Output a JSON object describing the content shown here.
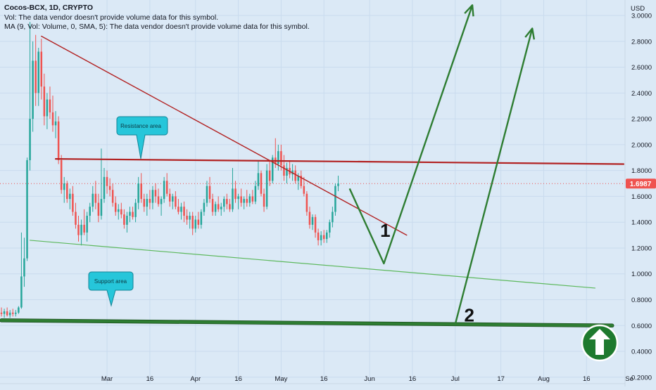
{
  "legend": {
    "title": "Cocos-BCX, 1D, CRYPTO",
    "vol": "Vol: The data vendor doesn't provide volume data for this symbol.",
    "ma": "MA (9, Vol: Volume, 0, SMA, 5): The data vendor doesn't provide volume data for this symbol."
  },
  "colors": {
    "background": "#dbe9f6",
    "up": "#26a69a",
    "down": "#ef5350",
    "resistance": "#b22222",
    "support": "#2e7d32",
    "channel": "#5cb85c",
    "arrow": "#2e7d32",
    "callout": "#26c6da",
    "price_badge": "#ef5350"
  },
  "chart_data": {
    "type": "candlestick",
    "y_axis": {
      "unit": "USD",
      "ticks": [
        "3.0000",
        "2.8000",
        "2.6000",
        "2.4000",
        "2.2000",
        "2.0000",
        "1.8000",
        "1.6000",
        "1.4000",
        "1.2000",
        "1.0000",
        "0.8000",
        "0.6000",
        "0.4000",
        "0.2000"
      ],
      "tick_values": [
        3.0,
        2.8,
        2.6,
        2.4,
        2.2,
        2.0,
        1.8,
        1.6,
        1.4,
        1.2,
        1.0,
        0.8,
        0.6,
        0.4,
        0.2
      ],
      "range": [
        0.15,
        3.12
      ]
    },
    "x_axis": {
      "labels": [
        "Mar",
        "16",
        "Apr",
        "16",
        "May",
        "16",
        "Jun",
        "16",
        "Jul",
        "17",
        "Aug",
        "16",
        "Se"
      ],
      "label_days": [
        29,
        44,
        60,
        75,
        90,
        105,
        121,
        136,
        151,
        167,
        182,
        197,
        212
      ],
      "range_days": [
        -8.5,
        210.5
      ]
    },
    "last_price": {
      "label": "1.6987",
      "value": 1.6987
    },
    "candles": [
      {
        "d": -8,
        "o": 0.7,
        "h": 0.74,
        "l": 0.67,
        "c": 0.69
      },
      {
        "d": -7,
        "o": 0.69,
        "h": 0.73,
        "l": 0.66,
        "c": 0.71
      },
      {
        "d": -6,
        "o": 0.71,
        "h": 0.74,
        "l": 0.67,
        "c": 0.68
      },
      {
        "d": -5,
        "o": 0.68,
        "h": 0.72,
        "l": 0.66,
        "c": 0.7
      },
      {
        "d": -4,
        "o": 0.7,
        "h": 0.73,
        "l": 0.67,
        "c": 0.69
      },
      {
        "d": -3,
        "o": 0.69,
        "h": 0.72,
        "l": 0.67,
        "c": 0.7
      },
      {
        "d": -2,
        "o": 0.7,
        "h": 0.75,
        "l": 0.69,
        "c": 0.74
      },
      {
        "d": -1,
        "o": 0.74,
        "h": 1.32,
        "l": 0.73,
        "c": 0.98
      },
      {
        "d": 0,
        "o": 0.98,
        "h": 1.28,
        "l": 0.9,
        "c": 1.12
      },
      {
        "d": 1,
        "o": 1.12,
        "h": 1.9,
        "l": 1.1,
        "c": 1.88
      },
      {
        "d": 2,
        "o": 1.88,
        "h": 2.95,
        "l": 1.8,
        "c": 2.2
      },
      {
        "d": 3,
        "o": 2.2,
        "h": 2.8,
        "l": 2.1,
        "c": 2.65
      },
      {
        "d": 4,
        "o": 2.65,
        "h": 2.85,
        "l": 2.3,
        "c": 2.4
      },
      {
        "d": 5,
        "o": 2.4,
        "h": 2.75,
        "l": 2.3,
        "c": 2.72
      },
      {
        "d": 6,
        "o": 2.72,
        "h": 2.82,
        "l": 2.35,
        "c": 2.45
      },
      {
        "d": 7,
        "o": 2.45,
        "h": 2.55,
        "l": 2.15,
        "c": 2.22
      },
      {
        "d": 8,
        "o": 2.22,
        "h": 2.4,
        "l": 2.12,
        "c": 2.35
      },
      {
        "d": 9,
        "o": 2.35,
        "h": 2.45,
        "l": 2.2,
        "c": 2.25
      },
      {
        "d": 10,
        "o": 2.25,
        "h": 2.38,
        "l": 2.1,
        "c": 2.15
      },
      {
        "d": 11,
        "o": 2.15,
        "h": 2.26,
        "l": 2.05,
        "c": 2.18
      },
      {
        "d": 12,
        "o": 2.18,
        "h": 2.22,
        "l": 1.85,
        "c": 1.88
      },
      {
        "d": 13,
        "o": 1.88,
        "h": 1.92,
        "l": 1.62,
        "c": 1.65
      },
      {
        "d": 14,
        "o": 1.65,
        "h": 1.75,
        "l": 1.55,
        "c": 1.7
      },
      {
        "d": 15,
        "o": 1.7,
        "h": 1.72,
        "l": 1.55,
        "c": 1.58
      },
      {
        "d": 16,
        "o": 1.58,
        "h": 1.66,
        "l": 1.5,
        "c": 1.62
      },
      {
        "d": 17,
        "o": 1.62,
        "h": 1.68,
        "l": 1.45,
        "c": 1.48
      },
      {
        "d": 18,
        "o": 1.48,
        "h": 1.55,
        "l": 1.35,
        "c": 1.38
      },
      {
        "d": 19,
        "o": 1.38,
        "h": 1.45,
        "l": 1.25,
        "c": 1.3
      },
      {
        "d": 20,
        "o": 1.3,
        "h": 1.42,
        "l": 1.22,
        "c": 1.38
      },
      {
        "d": 21,
        "o": 1.38,
        "h": 1.5,
        "l": 1.3,
        "c": 1.32
      },
      {
        "d": 22,
        "o": 1.32,
        "h": 1.48,
        "l": 1.25,
        "c": 1.45
      },
      {
        "d": 23,
        "o": 1.45,
        "h": 1.55,
        "l": 1.4,
        "c": 1.52
      },
      {
        "d": 24,
        "o": 1.52,
        "h": 1.68,
        "l": 1.48,
        "c": 1.62
      },
      {
        "d": 25,
        "o": 1.62,
        "h": 1.72,
        "l": 1.5,
        "c": 1.55
      },
      {
        "d": 26,
        "o": 1.55,
        "h": 1.62,
        "l": 1.4,
        "c": 1.45
      },
      {
        "d": 27,
        "o": 1.45,
        "h": 1.97,
        "l": 1.42,
        "c": 1.58
      },
      {
        "d": 28,
        "o": 1.58,
        "h": 1.82,
        "l": 1.55,
        "c": 1.75
      },
      {
        "d": 29,
        "o": 1.75,
        "h": 1.8,
        "l": 1.62,
        "c": 1.68
      },
      {
        "d": 30,
        "o": 1.68,
        "h": 1.74,
        "l": 1.6,
        "c": 1.65
      },
      {
        "d": 31,
        "o": 1.65,
        "h": 1.7,
        "l": 1.52,
        "c": 1.55
      },
      {
        "d": 32,
        "o": 1.55,
        "h": 1.6,
        "l": 1.45,
        "c": 1.48
      },
      {
        "d": 33,
        "o": 1.48,
        "h": 1.54,
        "l": 1.42,
        "c": 1.5
      },
      {
        "d": 34,
        "o": 1.5,
        "h": 1.55,
        "l": 1.43,
        "c": 1.46
      },
      {
        "d": 35,
        "o": 1.46,
        "h": 1.5,
        "l": 1.35,
        "c": 1.38
      },
      {
        "d": 36,
        "o": 1.38,
        "h": 1.48,
        "l": 1.32,
        "c": 1.45
      },
      {
        "d": 37,
        "o": 1.45,
        "h": 1.52,
        "l": 1.4,
        "c": 1.48
      },
      {
        "d": 38,
        "o": 1.48,
        "h": 1.52,
        "l": 1.42,
        "c": 1.44
      },
      {
        "d": 39,
        "o": 1.44,
        "h": 1.58,
        "l": 1.4,
        "c": 1.55
      },
      {
        "d": 40,
        "o": 1.55,
        "h": 1.75,
        "l": 1.5,
        "c": 1.7
      },
      {
        "d": 41,
        "o": 1.7,
        "h": 1.78,
        "l": 1.55,
        "c": 1.58
      },
      {
        "d": 42,
        "o": 1.58,
        "h": 1.62,
        "l": 1.48,
        "c": 1.52
      },
      {
        "d": 43,
        "o": 1.52,
        "h": 1.62,
        "l": 1.45,
        "c": 1.58
      },
      {
        "d": 44,
        "o": 1.58,
        "h": 1.65,
        "l": 1.5,
        "c": 1.55
      },
      {
        "d": 45,
        "o": 1.55,
        "h": 1.68,
        "l": 1.5,
        "c": 1.65
      },
      {
        "d": 46,
        "o": 1.65,
        "h": 1.7,
        "l": 1.55,
        "c": 1.6
      },
      {
        "d": 47,
        "o": 1.6,
        "h": 1.66,
        "l": 1.52,
        "c": 1.54
      },
      {
        "d": 48,
        "o": 1.54,
        "h": 1.6,
        "l": 1.45,
        "c": 1.58
      },
      {
        "d": 49,
        "o": 1.58,
        "h": 1.75,
        "l": 1.55,
        "c": 1.72
      },
      {
        "d": 50,
        "o": 1.72,
        "h": 1.78,
        "l": 1.6,
        "c": 1.62
      },
      {
        "d": 51,
        "o": 1.62,
        "h": 1.66,
        "l": 1.52,
        "c": 1.56
      },
      {
        "d": 52,
        "o": 1.56,
        "h": 1.62,
        "l": 1.5,
        "c": 1.6
      },
      {
        "d": 53,
        "o": 1.6,
        "h": 1.64,
        "l": 1.5,
        "c": 1.52
      },
      {
        "d": 54,
        "o": 1.52,
        "h": 1.58,
        "l": 1.46,
        "c": 1.48
      },
      {
        "d": 55,
        "o": 1.48,
        "h": 1.55,
        "l": 1.42,
        "c": 1.52
      },
      {
        "d": 56,
        "o": 1.52,
        "h": 1.56,
        "l": 1.4,
        "c": 1.45
      },
      {
        "d": 57,
        "o": 1.45,
        "h": 1.5,
        "l": 1.38,
        "c": 1.42
      },
      {
        "d": 58,
        "o": 1.42,
        "h": 1.48,
        "l": 1.35,
        "c": 1.45
      },
      {
        "d": 59,
        "o": 1.45,
        "h": 1.48,
        "l": 1.3,
        "c": 1.35
      },
      {
        "d": 60,
        "o": 1.35,
        "h": 1.45,
        "l": 1.32,
        "c": 1.42
      },
      {
        "d": 61,
        "o": 1.42,
        "h": 1.48,
        "l": 1.35,
        "c": 1.38
      },
      {
        "d": 62,
        "o": 1.38,
        "h": 1.5,
        "l": 1.35,
        "c": 1.48
      },
      {
        "d": 63,
        "o": 1.48,
        "h": 1.58,
        "l": 1.45,
        "c": 1.55
      },
      {
        "d": 64,
        "o": 1.55,
        "h": 1.72,
        "l": 1.52,
        "c": 1.68
      },
      {
        "d": 65,
        "o": 1.68,
        "h": 1.75,
        "l": 1.55,
        "c": 1.58
      },
      {
        "d": 66,
        "o": 1.58,
        "h": 1.62,
        "l": 1.45,
        "c": 1.48
      },
      {
        "d": 67,
        "o": 1.48,
        "h": 1.56,
        "l": 1.45,
        "c": 1.54
      },
      {
        "d": 68,
        "o": 1.54,
        "h": 1.6,
        "l": 1.48,
        "c": 1.5
      },
      {
        "d": 69,
        "o": 1.5,
        "h": 1.55,
        "l": 1.45,
        "c": 1.52
      },
      {
        "d": 70,
        "o": 1.52,
        "h": 1.6,
        "l": 1.48,
        "c": 1.58
      },
      {
        "d": 71,
        "o": 1.58,
        "h": 1.62,
        "l": 1.5,
        "c": 1.54
      },
      {
        "d": 72,
        "o": 1.54,
        "h": 1.58,
        "l": 1.48,
        "c": 1.5
      },
      {
        "d": 73,
        "o": 1.5,
        "h": 1.82,
        "l": 1.48,
        "c": 1.66
      },
      {
        "d": 74,
        "o": 1.66,
        "h": 1.72,
        "l": 1.55,
        "c": 1.58
      },
      {
        "d": 75,
        "o": 1.58,
        "h": 1.62,
        "l": 1.5,
        "c": 1.6
      },
      {
        "d": 76,
        "o": 1.6,
        "h": 1.66,
        "l": 1.52,
        "c": 1.55
      },
      {
        "d": 77,
        "o": 1.55,
        "h": 1.6,
        "l": 1.5,
        "c": 1.58
      },
      {
        "d": 78,
        "o": 1.58,
        "h": 1.65,
        "l": 1.52,
        "c": 1.55
      },
      {
        "d": 79,
        "o": 1.55,
        "h": 1.62,
        "l": 1.52,
        "c": 1.6
      },
      {
        "d": 80,
        "o": 1.6,
        "h": 1.65,
        "l": 1.54,
        "c": 1.56
      },
      {
        "d": 81,
        "o": 1.56,
        "h": 1.72,
        "l": 1.54,
        "c": 1.68
      },
      {
        "d": 82,
        "o": 1.68,
        "h": 1.88,
        "l": 1.65,
        "c": 1.78
      },
      {
        "d": 83,
        "o": 1.78,
        "h": 1.8,
        "l": 1.6,
        "c": 1.62
      },
      {
        "d": 84,
        "o": 1.62,
        "h": 1.66,
        "l": 1.48,
        "c": 1.52
      },
      {
        "d": 85,
        "o": 1.52,
        "h": 1.85,
        "l": 1.5,
        "c": 1.8
      },
      {
        "d": 86,
        "o": 1.8,
        "h": 1.88,
        "l": 1.68,
        "c": 1.72
      },
      {
        "d": 87,
        "o": 1.72,
        "h": 1.92,
        "l": 1.7,
        "c": 1.9
      },
      {
        "d": 88,
        "o": 1.9,
        "h": 2.05,
        "l": 1.82,
        "c": 1.85
      },
      {
        "d": 89,
        "o": 1.85,
        "h": 2.0,
        "l": 1.8,
        "c": 1.95
      },
      {
        "d": 90,
        "o": 1.95,
        "h": 2.0,
        "l": 1.8,
        "c": 1.84
      },
      {
        "d": 91,
        "o": 1.84,
        "h": 1.92,
        "l": 1.72,
        "c": 1.76
      },
      {
        "d": 92,
        "o": 1.76,
        "h": 1.86,
        "l": 1.7,
        "c": 1.82
      },
      {
        "d": 93,
        "o": 1.82,
        "h": 1.88,
        "l": 1.74,
        "c": 1.77
      },
      {
        "d": 94,
        "o": 1.77,
        "h": 1.85,
        "l": 1.72,
        "c": 1.8
      },
      {
        "d": 95,
        "o": 1.8,
        "h": 1.84,
        "l": 1.7,
        "c": 1.72
      },
      {
        "d": 96,
        "o": 1.72,
        "h": 1.78,
        "l": 1.65,
        "c": 1.76
      },
      {
        "d": 97,
        "o": 1.76,
        "h": 1.8,
        "l": 1.66,
        "c": 1.68
      },
      {
        "d": 98,
        "o": 1.68,
        "h": 1.75,
        "l": 1.6,
        "c": 1.62
      },
      {
        "d": 99,
        "o": 1.62,
        "h": 1.64,
        "l": 1.45,
        "c": 1.48
      },
      {
        "d": 100,
        "o": 1.48,
        "h": 1.52,
        "l": 1.35,
        "c": 1.38
      },
      {
        "d": 101,
        "o": 1.38,
        "h": 1.46,
        "l": 1.34,
        "c": 1.44
      },
      {
        "d": 102,
        "o": 1.44,
        "h": 1.46,
        "l": 1.28,
        "c": 1.32
      },
      {
        "d": 103,
        "o": 1.32,
        "h": 1.35,
        "l": 1.22,
        "c": 1.26
      },
      {
        "d": 104,
        "o": 1.26,
        "h": 1.33,
        "l": 1.22,
        "c": 1.3
      },
      {
        "d": 105,
        "o": 1.3,
        "h": 1.34,
        "l": 1.24,
        "c": 1.27
      },
      {
        "d": 106,
        "o": 1.27,
        "h": 1.34,
        "l": 1.24,
        "c": 1.32
      },
      {
        "d": 107,
        "o": 1.32,
        "h": 1.42,
        "l": 1.28,
        "c": 1.4
      },
      {
        "d": 108,
        "o": 1.4,
        "h": 1.52,
        "l": 1.36,
        "c": 1.48
      },
      {
        "d": 109,
        "o": 1.48,
        "h": 1.7,
        "l": 1.45,
        "c": 1.68
      },
      {
        "d": 110,
        "o": 1.68,
        "h": 1.76,
        "l": 1.64,
        "c": 1.7
      }
    ],
    "trendlines": [
      {
        "name": "Resistance area",
        "kind": "resistance",
        "from": [
          11,
          1.89
        ],
        "to": [
          210,
          1.85
        ]
      },
      {
        "kind": "descending",
        "from": [
          6,
          2.84
        ],
        "to": [
          134,
          1.3
        ]
      },
      {
        "kind": "channel",
        "from": [
          2,
          1.26
        ],
        "to": [
          200,
          0.89
        ]
      },
      {
        "name": "Support area",
        "kind": "support",
        "from": [
          -8,
          0.64
        ],
        "to": [
          206,
          0.6
        ]
      }
    ],
    "projections": [
      {
        "label": "1",
        "path": [
          [
            114,
            1.66
          ],
          [
            126,
            1.08
          ],
          [
            157,
            3.08
          ]
        ]
      },
      {
        "label": "2",
        "path": [
          [
            151,
            0.61
          ],
          [
            178,
            2.9
          ]
        ]
      }
    ]
  }
}
